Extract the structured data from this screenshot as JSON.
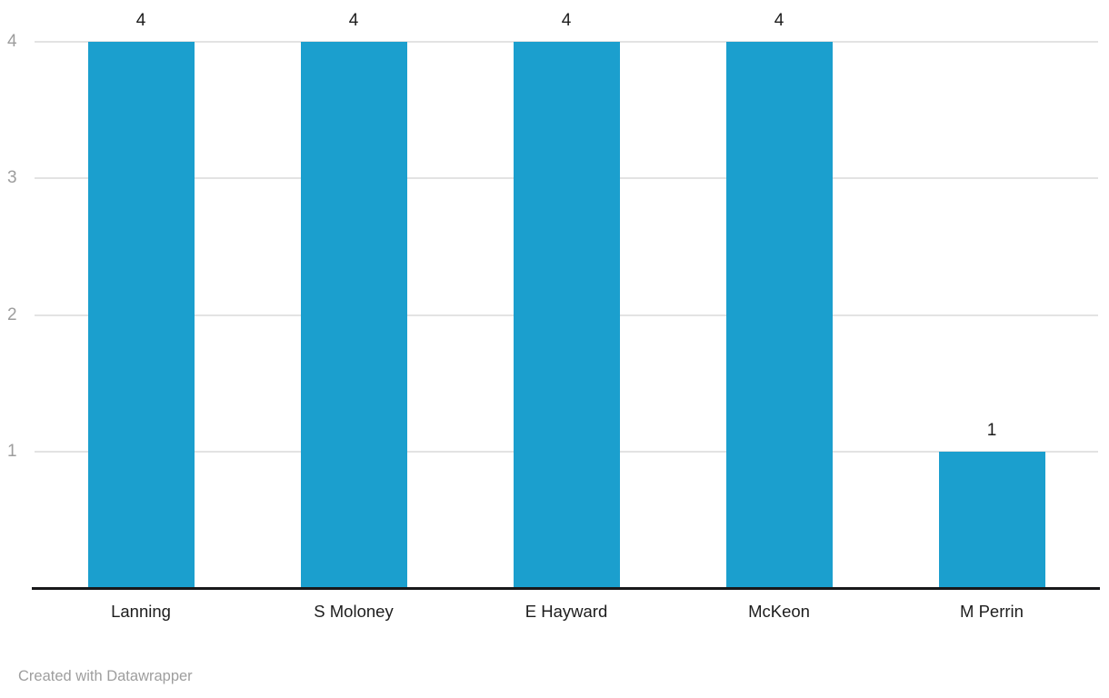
{
  "chart_data": {
    "type": "bar",
    "categories": [
      "Lanning",
      "S Moloney",
      "E Hayward",
      "McKeon",
      "M Perrin"
    ],
    "values": [
      4,
      4,
      4,
      4,
      1
    ],
    "value_labels": [
      "4",
      "4",
      "4",
      "4",
      "1"
    ],
    "title": "",
    "xlabel": "",
    "ylabel": "",
    "ylim": [
      0,
      4
    ],
    "yticks": [
      1,
      2,
      3,
      4
    ],
    "ytick_labels": [
      "1",
      "2",
      "3",
      "4"
    ],
    "grid": true,
    "legend": false,
    "bar_color": "#1b9fce",
    "gridline_color": "#e3e3e3",
    "axis_tick_color": "#9d9d9d",
    "baseline_color": "#18181a",
    "value_label_color": "#1d1d1d",
    "category_label_color": "#1d1d1d"
  },
  "footer": {
    "attribution": "Created with Datawrapper"
  }
}
